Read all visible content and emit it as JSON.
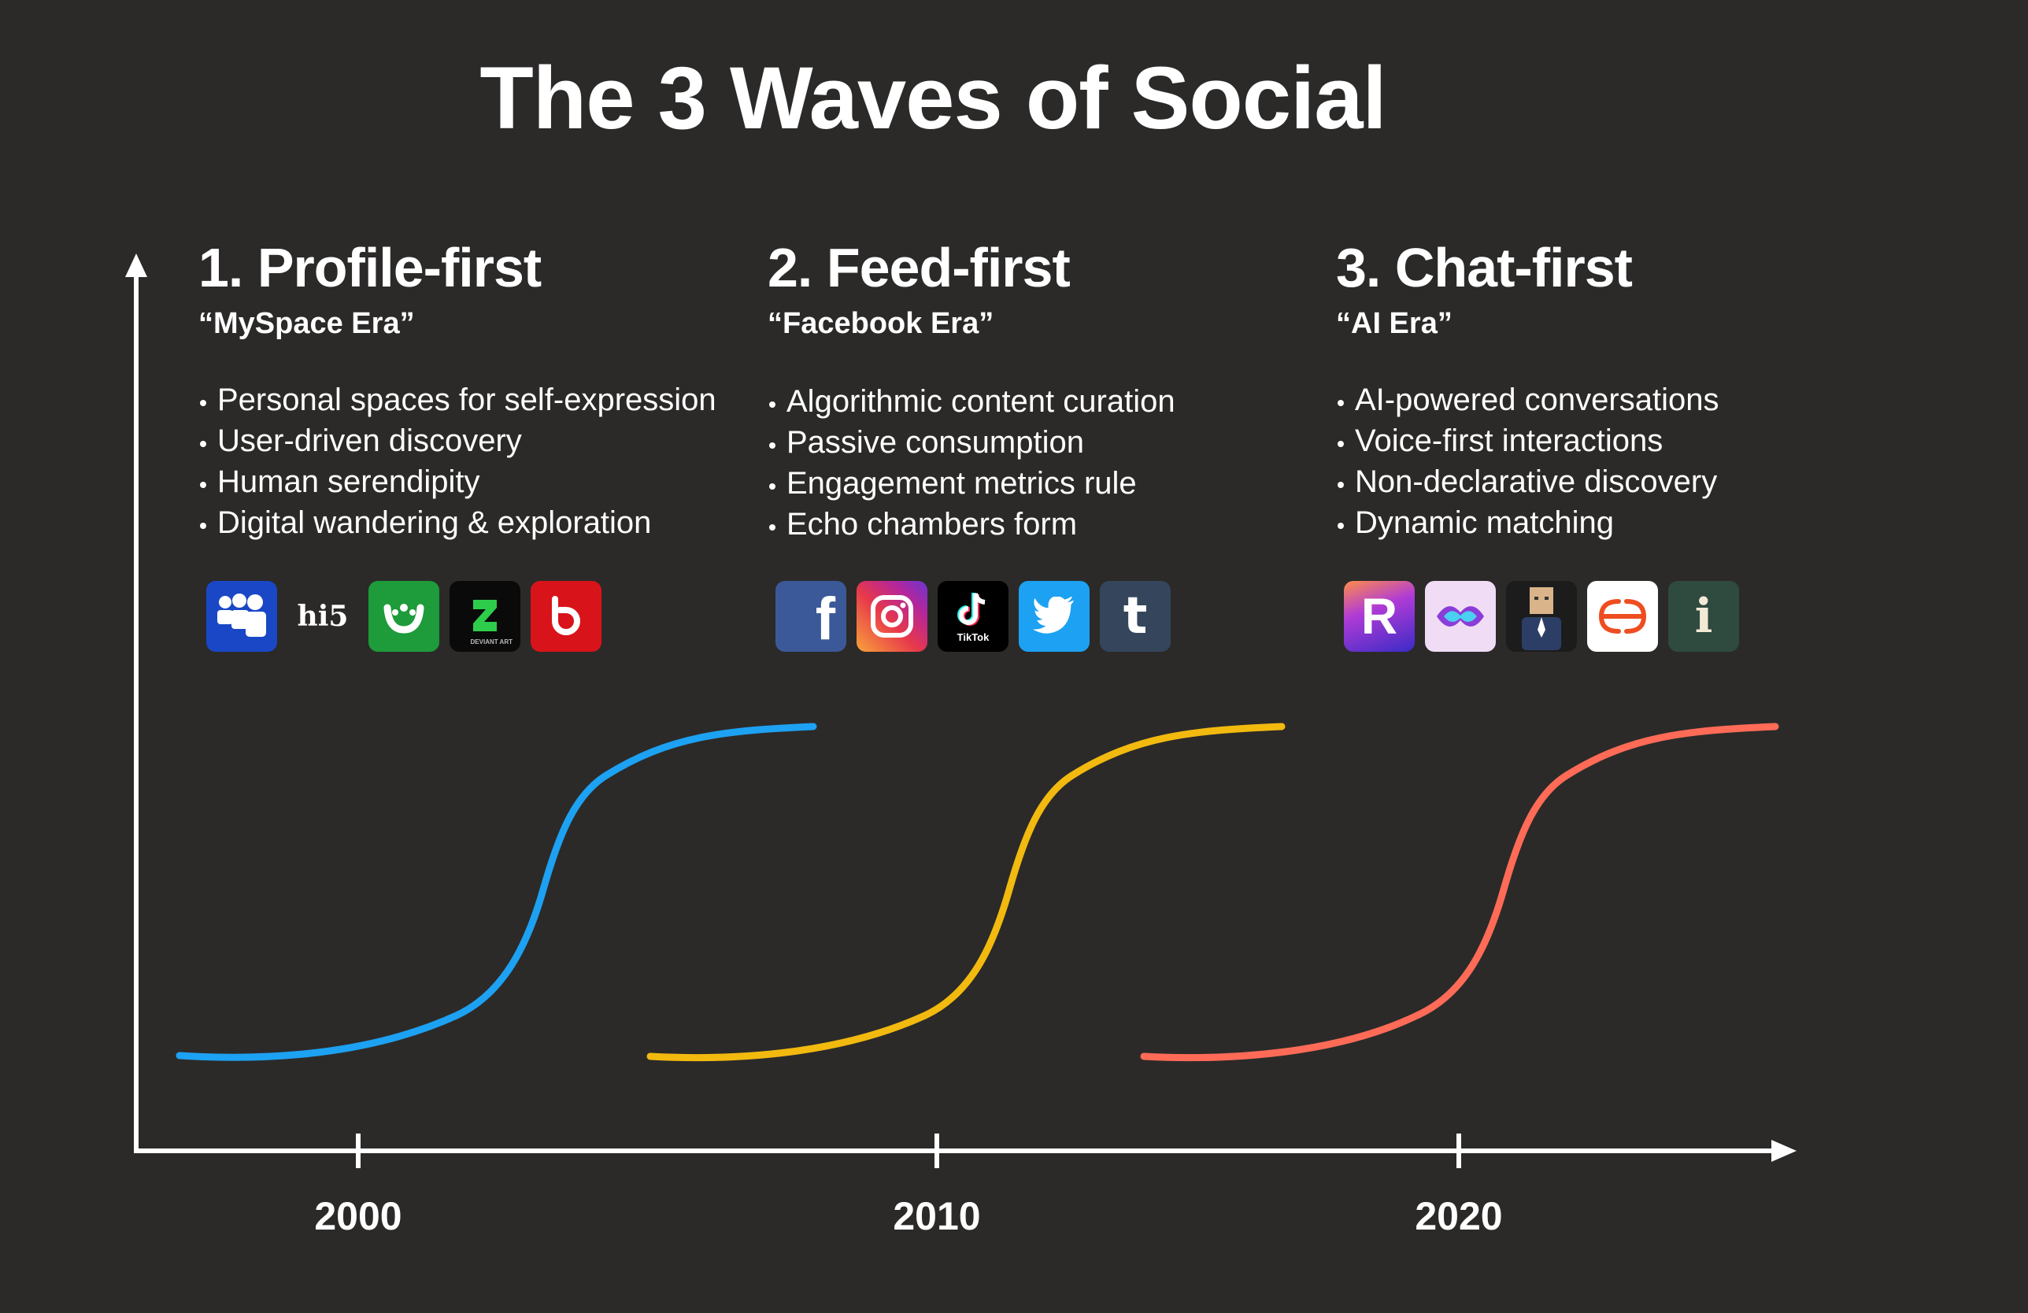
{
  "title": "The 3 Waves of Social",
  "waves": [
    {
      "heading": "1. Profile-first",
      "era": "“MySpace Era”",
      "bullets": [
        "Personal spaces for self-expression",
        "User-driven discovery",
        "Human serendipity",
        "Digital wandering & exploration"
      ],
      "color": "#1da1f2",
      "logos": [
        {
          "icon": "myspace-icon",
          "bg": "#1a47c6",
          "text": ""
        },
        {
          "icon": "hi5-icon",
          "bg": "transparent",
          "text": "hi5"
        },
        {
          "icon": "friendster-icon",
          "bg": "#1e9b3a",
          "text": ""
        },
        {
          "icon": "deviantart-icon",
          "bg": "#0a0a0a",
          "text": "DEVIANT ART"
        },
        {
          "icon": "bebo-icon",
          "bg": "#d8141a",
          "text": ""
        }
      ]
    },
    {
      "heading": "2. Feed-first",
      "era": "“Facebook Era”",
      "bullets": [
        "Algorithmic content curation",
        "Passive consumption",
        "Engagement metrics rule",
        "Echo chambers form"
      ],
      "color": "#f2b90f",
      "logos": [
        {
          "icon": "facebook-icon",
          "bg": "#3b5998",
          "text": "f"
        },
        {
          "icon": "instagram-icon",
          "bg": "#d6249f",
          "text": ""
        },
        {
          "icon": "tiktok-icon",
          "bg": "#000000",
          "text": "TikTok"
        },
        {
          "icon": "twitter-icon",
          "bg": "#1da1f2",
          "text": ""
        },
        {
          "icon": "tumblr-icon",
          "bg": "#35465c",
          "text": "t"
        }
      ]
    },
    {
      "heading": "3. Chat-first",
      "era": "“AI Era”",
      "bullets": [
        "AI-powered conversations",
        "Voice-first interactions",
        "Non-declarative discovery",
        "Dynamic matching"
      ],
      "color": "#ff6b57",
      "logos": [
        {
          "icon": "replika-icon",
          "bg": "#4b3bd6",
          "text": "R"
        },
        {
          "icon": "talkie-icon",
          "bg": "#f1dcf5",
          "text": ""
        },
        {
          "icon": "avatar-app-icon",
          "bg": "#1c1c1c",
          "text": ""
        },
        {
          "icon": "character-ai-icon",
          "bg": "#ffffff",
          "text": ""
        },
        {
          "icon": "inflection-pi-icon",
          "bg": "#2f4a3f",
          "text": "i"
        }
      ]
    }
  ],
  "axis": {
    "years": [
      "2000",
      "2010",
      "2020"
    ]
  },
  "colors": {
    "background": "#2b2a29",
    "axis": "#ffffff"
  }
}
